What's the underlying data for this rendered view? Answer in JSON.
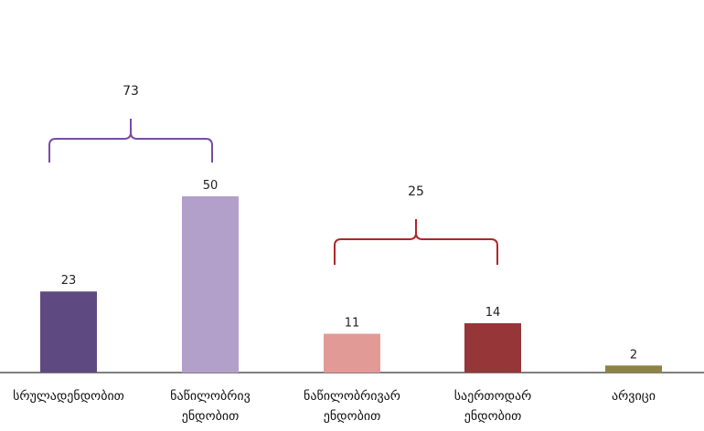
{
  "chart_data": {
    "type": "bar",
    "categories": [
      [
        "სრულადენდობით"
      ],
      [
        "ნაწილობრივ",
        "ენდობით"
      ],
      [
        "ნაწილობრივარ",
        "ენდობით"
      ],
      [
        "საერთოდარ",
        "ენდობით"
      ],
      [
        "არვიცი"
      ]
    ],
    "values": [
      23,
      50,
      11,
      14,
      2
    ],
    "colors": [
      "#5e4a80",
      "#b2a0cb",
      "#e19a96",
      "#963638",
      "#8c8446"
    ],
    "title": "",
    "xlabel": "",
    "ylabel": "",
    "ylim": [
      0,
      50
    ],
    "grid": false,
    "legend": "none",
    "annotations": [
      {
        "text": "73",
        "from_category": 0,
        "to_category": 1,
        "color": "#7a4aa8"
      },
      {
        "text": "25",
        "from_category": 2,
        "to_category": 3,
        "color": "#b0252a"
      }
    ]
  }
}
